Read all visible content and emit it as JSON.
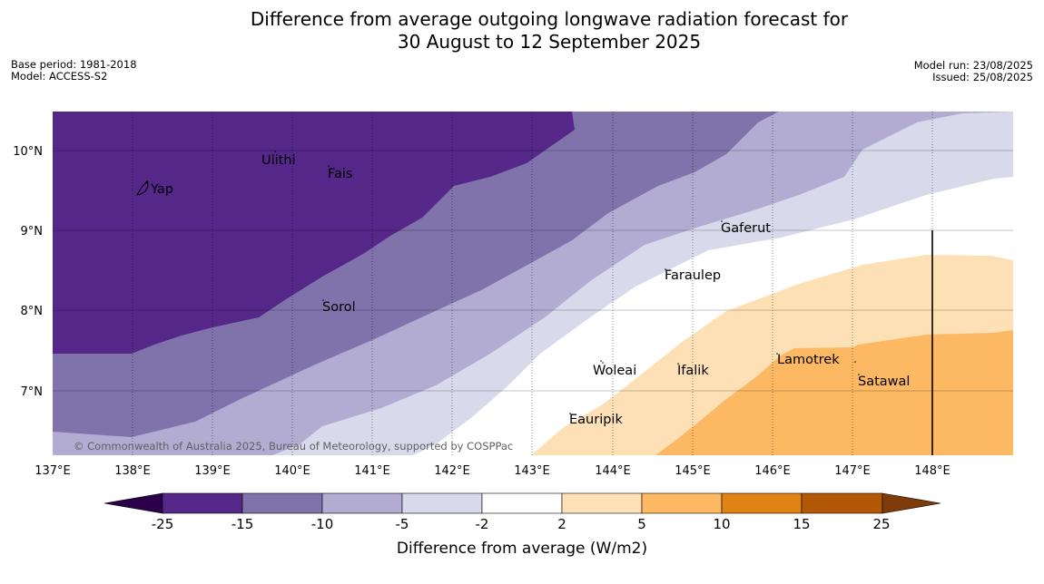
{
  "header": {
    "title_line1": "Difference from average outgoing longwave radiation forecast for",
    "title_line2": "30 August to 12 September 2025",
    "base_period": "Base period: 1981-2018",
    "model": "Model: ACCESS-S2",
    "model_run": "Model run: 23/08/2025",
    "issued": "Issued: 25/08/2025"
  },
  "map": {
    "lon_labels": [
      "137°E",
      "138°E",
      "139°E",
      "140°E",
      "141°E",
      "142°E",
      "143°E",
      "144°E",
      "145°E",
      "146°E",
      "147°E",
      "148°E"
    ],
    "lat_labels": [
      "10°N",
      "9°N",
      "8°N",
      "7°N"
    ],
    "places": [
      "Yap",
      "Ulithi",
      "Fais",
      "Gaferut",
      "Faraulep",
      "Sorol",
      "Woleai",
      "Ifalik",
      "Lamotrek",
      "Satawal",
      "Eauripik"
    ],
    "copyright": "© Commonwealth of Australia 2025, Bureau of Meteorology, supported by COSPPac"
  },
  "colorbar": {
    "ticks": [
      "-25",
      "-15",
      "-10",
      "-5",
      "-2",
      "2",
      "5",
      "10",
      "15",
      "25"
    ],
    "title": "Difference from average (W/m2)",
    "colors": [
      "#2d004b",
      "#542788",
      "#8073ac",
      "#b2abd2",
      "#d8daeb",
      "#ffffff",
      "#fee0b6",
      "#fdb863",
      "#e08214",
      "#b35806",
      "#7f3b08"
    ]
  }
}
